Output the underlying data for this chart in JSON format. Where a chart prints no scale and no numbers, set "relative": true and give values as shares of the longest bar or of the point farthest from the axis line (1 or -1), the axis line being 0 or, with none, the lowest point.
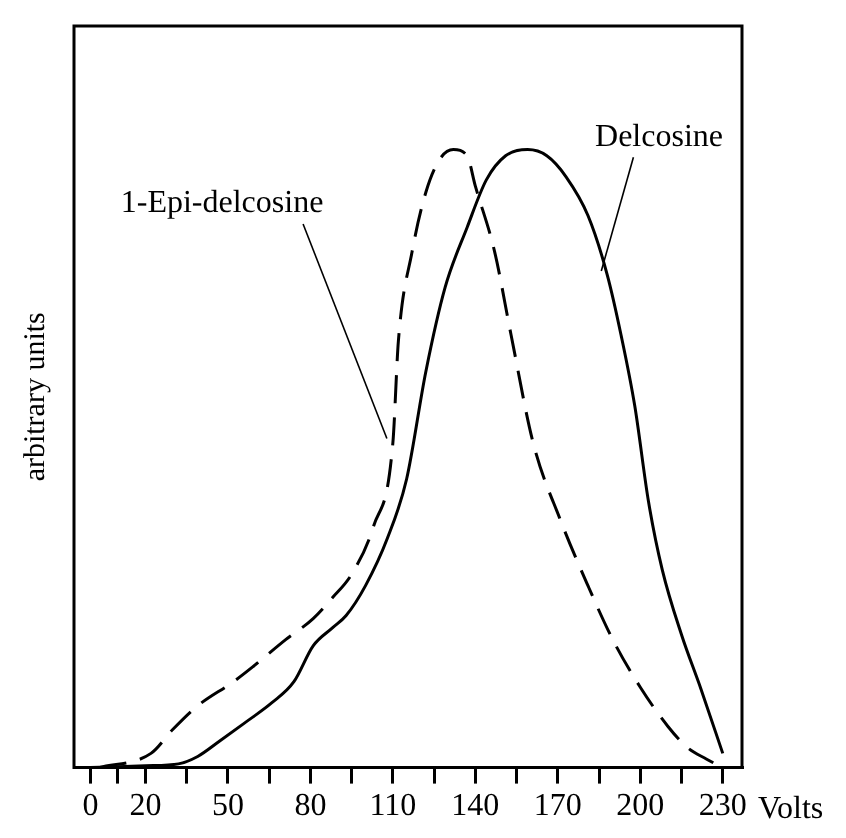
{
  "chart_data": {
    "type": "line",
    "xlabel": "Volts",
    "ylabel": "arbitrary units",
    "relative": true,
    "xlim": [
      -6,
      237
    ],
    "xticks": [
      0,
      {
        "value": 10,
        "label": null
      },
      20,
      {
        "value": 35,
        "label": null
      },
      50,
      {
        "value": 65,
        "label": null
      },
      80,
      {
        "value": 95,
        "label": null
      },
      110,
      {
        "value": 125,
        "label": null
      },
      140,
      {
        "value": 155,
        "label": null
      },
      170,
      {
        "value": 185,
        "label": null
      },
      200,
      {
        "value": 215,
        "label": null
      },
      230
    ],
    "grid": false,
    "legend": false,
    "marker": "none",
    "series": [
      {
        "name": "1-Epi-delcosine",
        "color": "#000000",
        "line_style": "dashed",
        "x": [
          3,
          22,
          30,
          39,
          52,
          59,
          71,
          81,
          88,
          95,
          103,
          110,
          112,
          117,
          122,
          127,
          132,
          137,
          140,
          147,
          153,
          161,
          171,
          181,
          190,
          200,
          210,
          217,
          224,
          230
        ],
        "values": [
          0,
          0.023,
          0.062,
          0.1,
          0.139,
          0.163,
          0.207,
          0.241,
          0.275,
          0.313,
          0.391,
          0.526,
          0.69,
          0.835,
          0.931,
          0.984,
          1,
          0.99,
          0.941,
          0.835,
          0.7,
          0.526,
          0.4,
          0.294,
          0.207,
          0.13,
          0.067,
          0.033,
          0.014,
          0
        ]
      },
      {
        "name": "Delcosine",
        "color": "#000000",
        "line_style": "solid",
        "x": [
          0,
          20,
          32,
          39,
          47,
          56,
          66,
          74,
          81,
          88,
          93,
          100,
          108,
          115,
          122,
          129,
          137,
          144,
          151,
          159,
          166,
          173,
          181,
          188,
          193,
          198,
          203,
          208,
          215,
          222,
          230
        ],
        "values": [
          0,
          0.003,
          0.006,
          0.018,
          0.043,
          0.072,
          0.105,
          0.139,
          0.197,
          0.226,
          0.246,
          0.294,
          0.371,
          0.467,
          0.641,
          0.777,
          0.874,
          0.951,
          0.99,
          1,
          0.99,
          0.956,
          0.893,
          0.797,
          0.7,
          0.585,
          0.43,
          0.32,
          0.215,
          0.128,
          0.023
        ]
      }
    ]
  }
}
